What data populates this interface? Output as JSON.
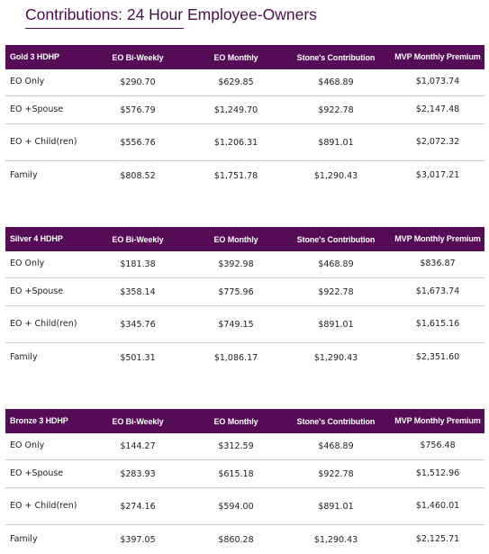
{
  "title": "Contributions: 24 Hour Employee-Owners",
  "headers": {
    "biweekly": "EO Bi-Weekly",
    "monthly": "EO Monthly",
    "stones": "Stone's Contribution",
    "mvp": "MVP Monthly Premium"
  },
  "plans": [
    {
      "name": "Gold 3 HDHP",
      "rows": [
        {
          "tier": "EO Only",
          "biweekly": "$290.70",
          "monthly": "$629.85",
          "stones": "$468.89",
          "mvp": "$1,073.74"
        },
        {
          "tier": "EO +Spouse",
          "biweekly": "$576.79",
          "monthly": "$1,249.70",
          "stones": "$922.78",
          "mvp": "$2,147.48"
        },
        {
          "tier": "EO + Child(ren)",
          "biweekly": "$556.76",
          "monthly": "$1,206.31",
          "stones": "$891.01",
          "mvp": "$2,072.32"
        },
        {
          "tier": "Family",
          "biweekly": "$808.52",
          "monthly": "$1,751.78",
          "stones": "$1,290.43",
          "mvp": "$3,017.21"
        }
      ]
    },
    {
      "name": "Silver 4 HDHP",
      "rows": [
        {
          "tier": "EO Only",
          "biweekly": "$181.38",
          "monthly": "$392.98",
          "stones": "$468.89",
          "mvp": "$836.87"
        },
        {
          "tier": "EO +Spouse",
          "biweekly": "$358.14",
          "monthly": "$775.96",
          "stones": "$922.78",
          "mvp": "$1,673.74"
        },
        {
          "tier": "EO + Child(ren)",
          "biweekly": "$345.76",
          "monthly": "$749.15",
          "stones": "$891.01",
          "mvp": "$1,615.16"
        },
        {
          "tier": "Family",
          "biweekly": "$501.31",
          "monthly": "$1,086.17",
          "stones": "$1,290.43",
          "mvp": "$2,351.60"
        }
      ]
    },
    {
      "name": "Bronze 3 HDHP",
      "rows": [
        {
          "tier": "EO Only",
          "biweekly": "$144.27",
          "monthly": "$312.59",
          "stones": "$468.89",
          "mvp": "$756.48"
        },
        {
          "tier": "EO +Spouse",
          "biweekly": "$283.93",
          "monthly": "$615.18",
          "stones": "$922.78",
          "mvp": "$1,512.96"
        },
        {
          "tier": "EO + Child(ren)",
          "biweekly": "$274.16",
          "monthly": "$594.00",
          "stones": "$891.01",
          "mvp": "$1,460.01"
        },
        {
          "tier": "Family",
          "biweekly": "$397.05",
          "monthly": "$860.28",
          "stones": "$1,290.43",
          "mvp": "$2,125.71"
        }
      ]
    }
  ]
}
